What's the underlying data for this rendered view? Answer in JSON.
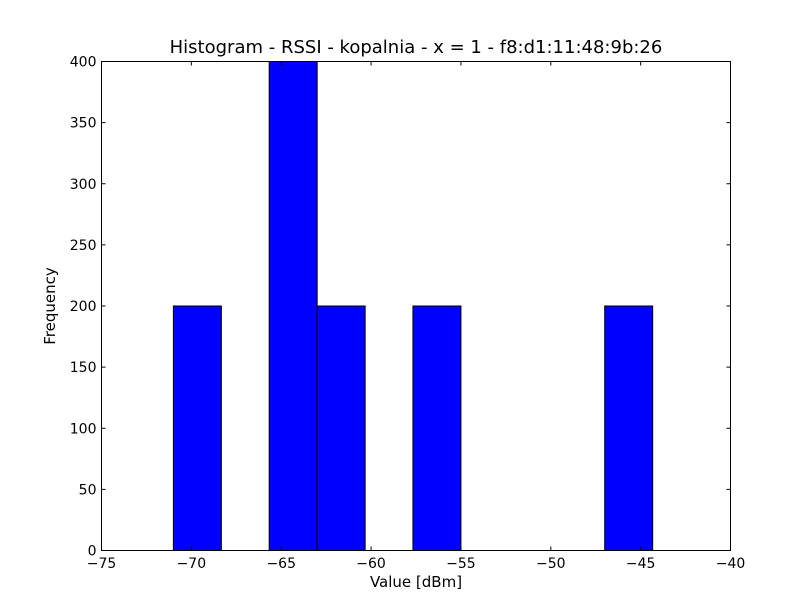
{
  "chart_data": {
    "type": "bar",
    "title": "Histogram - RSSI - kopalnia - x = 1 - f8:d1:11:48:9b:26",
    "xlabel": "Value [dBm]",
    "ylabel": "Frequency",
    "xlim": [
      -75,
      -40
    ],
    "ylim": [
      0,
      400
    ],
    "x_ticks": [
      -75,
      -70,
      -65,
      -60,
      -55,
      -50,
      -45,
      -40
    ],
    "x_tick_labels": [
      "−75",
      "−70",
      "−65",
      "−60",
      "−55",
      "−50",
      "−45",
      "−40"
    ],
    "y_ticks": [
      0,
      50,
      100,
      150,
      200,
      250,
      300,
      350,
      400
    ],
    "y_tick_labels": [
      "0",
      "50",
      "100",
      "150",
      "200",
      "250",
      "300",
      "350",
      "400"
    ],
    "bin_edges": [
      -71.0,
      -68.33,
      -65.67,
      -63.0,
      -60.33,
      -57.67,
      -55.0,
      -52.33,
      -49.67,
      -47.0,
      -44.33
    ],
    "values": [
      200,
      0,
      400,
      200,
      0,
      200,
      0,
      0,
      0,
      200
    ],
    "grid": false,
    "bar_color": "#0000ff",
    "edge_color": "#000000"
  }
}
